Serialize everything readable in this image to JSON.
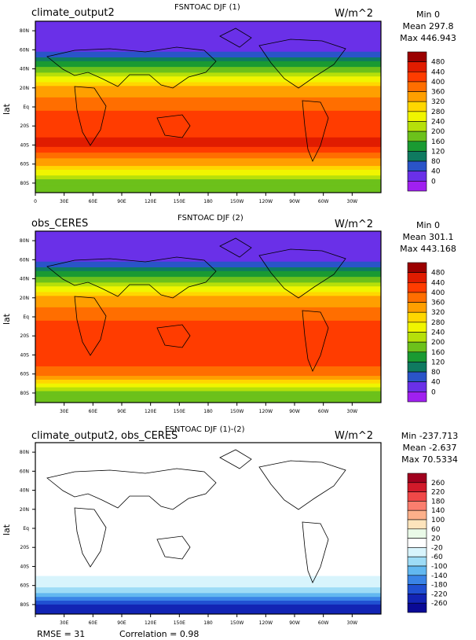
{
  "panels": [
    {
      "left_title": "climate_output2",
      "center_title": "FSNTOAC DJF (1)",
      "units": "W/m^2",
      "stats": [
        "Min 0",
        "Mean 297.8",
        "Max 446.943"
      ],
      "ylabel": "lat",
      "xticks": [
        "0",
        "30E",
        "60E",
        "90E",
        "120E",
        "150E",
        "180",
        "150W",
        "120W",
        "90W",
        "60W",
        "30W"
      ],
      "yticks": [
        "80N",
        "60N",
        "40N",
        "20N",
        "Eq",
        "20S",
        "40S",
        "60S",
        "80S"
      ],
      "levels": [
        "480",
        "440",
        "400",
        "360",
        "320",
        "280",
        "240",
        "200",
        "160",
        "120",
        "80",
        "40",
        "0"
      ],
      "colors": [
        "#9b0000",
        "#e01c00",
        "#ff3c00",
        "#ff6e00",
        "#ff9f00",
        "#ffd700",
        "#f0f500",
        "#b6e00a",
        "#6cc11b",
        "#1a9a32",
        "#0f7a60",
        "#2a54c8",
        "#6a30e8",
        "#a020f0"
      ]
    },
    {
      "left_title": "obs_CERES",
      "center_title": "FSNTOAC DJF (2)",
      "units": "W/m^2",
      "stats": [
        "Min 0",
        "Mean 301.1",
        "Max 443.168"
      ],
      "ylabel": "lat",
      "xticks": [
        "",
        "30E",
        "60E",
        "90E",
        "120E",
        "150E",
        "180",
        "150W",
        "120W",
        "90W",
        "60W",
        "30W"
      ],
      "yticks": [
        "80N",
        "60N",
        "40N",
        "20N",
        "Eq",
        "20S",
        "40S",
        "60S",
        "80S"
      ],
      "levels": [
        "480",
        "440",
        "400",
        "360",
        "320",
        "280",
        "240",
        "200",
        "160",
        "120",
        "80",
        "40",
        "0"
      ],
      "colors": [
        "#9b0000",
        "#e01c00",
        "#ff3c00",
        "#ff6e00",
        "#ff9f00",
        "#ffd700",
        "#f0f500",
        "#b6e00a",
        "#6cc11b",
        "#1a9a32",
        "#0f7a60",
        "#2a54c8",
        "#6a30e8",
        "#a020f0"
      ]
    },
    {
      "left_title": "climate_output2, obs_CERES",
      "center_title": "FSNTOAC DJF (1)-(2)",
      "units": "W/m^2",
      "stats": [
        "Min -237.713",
        "Mean -2.637",
        "Max 70.5334"
      ],
      "ylabel": "lat",
      "xticks": [
        "",
        "30E",
        "60E",
        "90E",
        "120E",
        "150E",
        "180",
        "150W",
        "120W",
        "90W",
        "60W",
        "30W"
      ],
      "yticks": [
        "80N",
        "60N",
        "40N",
        "20N",
        "Eq",
        "20S",
        "40S",
        "60S",
        "80S"
      ],
      "levels": [
        "260",
        "220",
        "180",
        "140",
        "100",
        "60",
        "20",
        "-20",
        "-60",
        "-100",
        "-140",
        "-180",
        "-220",
        "-260"
      ],
      "colors": [
        "#a0001e",
        "#d11a2a",
        "#f04848",
        "#fa7e6e",
        "#fdb08a",
        "#fde4bc",
        "#eafae8",
        "#ffffff",
        "#d8f4fc",
        "#9edcf6",
        "#62b8f0",
        "#3a84e6",
        "#2050d2",
        "#1224b4",
        "#0a0a96"
      ]
    }
  ],
  "footer": {
    "rmse": "RMSE = 31",
    "correlation": "Correlation = 0.98"
  },
  "chart_data": [
    {
      "type": "heatmap",
      "title": "FSNTOAC DJF (1)",
      "subtitle": "climate_output2",
      "units": "W/m^2",
      "ylabel": "lat",
      "xlabel": "",
      "ylim": [
        -90,
        90
      ],
      "zonal_profile_lat": [
        80,
        60,
        40,
        20,
        0,
        -20,
        -40,
        -60,
        -80
      ],
      "zonal_profile_values": [
        0,
        30,
        170,
        330,
        390,
        430,
        446,
        330,
        170
      ],
      "colorbar_levels": [
        0,
        40,
        80,
        120,
        160,
        200,
        240,
        280,
        320,
        360,
        400,
        440,
        480
      ],
      "min": 0,
      "mean": 297.8,
      "max": 446.943
    },
    {
      "type": "heatmap",
      "title": "FSNTOAC DJF (2)",
      "subtitle": "obs_CERES",
      "units": "W/m^2",
      "ylabel": "lat",
      "xlabel": "",
      "ylim": [
        -90,
        90
      ],
      "zonal_profile_lat": [
        80,
        60,
        40,
        20,
        0,
        -20,
        -40,
        -60,
        -80
      ],
      "zonal_profile_values": [
        0,
        30,
        170,
        330,
        390,
        430,
        440,
        370,
        180
      ],
      "colorbar_levels": [
        0,
        40,
        80,
        120,
        160,
        200,
        240,
        280,
        320,
        360,
        400,
        440,
        480
      ],
      "min": 0,
      "mean": 301.1,
      "max": 443.168
    },
    {
      "type": "heatmap",
      "title": "FSNTOAC DJF (1)-(2)",
      "subtitle": "climate_output2, obs_CERES",
      "units": "W/m^2",
      "ylabel": "lat",
      "xlabel": "",
      "ylim": [
        -90,
        90
      ],
      "zonal_profile_lat": [
        80,
        60,
        40,
        20,
        0,
        -20,
        -40,
        -60,
        -70,
        -80
      ],
      "zonal_profile_values": [
        0,
        0,
        0,
        0,
        0,
        0,
        0,
        -40,
        -120,
        -230
      ],
      "colorbar_levels": [
        -260,
        -220,
        -180,
        -140,
        -100,
        -60,
        -20,
        20,
        60,
        100,
        140,
        180,
        220,
        260
      ],
      "min": -237.713,
      "mean": -2.637,
      "max": 70.5334,
      "rmse": 31,
      "correlation": 0.98
    }
  ],
  "icons": [
    "map-panel",
    "colorbar"
  ]
}
